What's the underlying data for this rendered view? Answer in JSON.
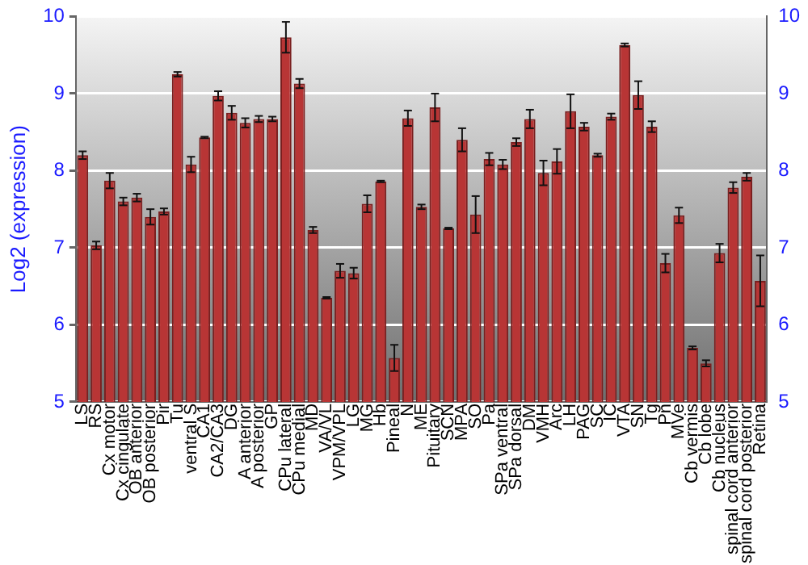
{
  "chart_data": {
    "type": "bar",
    "ylabel": "Log2 (expression)",
    "categories": [
      "LS",
      "RS",
      "Cx motor",
      "Cx cingulate",
      "OB anterior",
      "OB posterior",
      "Pir",
      "Tu",
      "ventral S",
      "CA1",
      "CA2/CA3",
      "DG",
      "A anterior",
      "A posterior",
      "GP",
      "CPu lateral",
      "CPu medial",
      "MD",
      "VA/VL",
      "VPM/VPL",
      "LG",
      "MG",
      "Hb",
      "Pineal",
      "N",
      "ME",
      "Pituitary",
      "SCN",
      "MPA",
      "SO",
      "Pa",
      "SPa ventral",
      "SPa dorsal",
      "DM",
      "VMH",
      "Arc",
      "LH",
      "PAG",
      "SC",
      "IC",
      "VTA",
      "SN",
      "Tg",
      "Pn",
      "MVe",
      "Cb vermis",
      "Cb lobe",
      "Cb nucleus",
      "spinal cord anterior",
      "spinal cord posterior",
      "Retina"
    ],
    "values": [
      8.2,
      7.03,
      7.87,
      7.6,
      7.65,
      7.4,
      7.47,
      9.25,
      8.08,
      8.43,
      8.97,
      8.75,
      8.62,
      8.67,
      8.67,
      9.73,
      9.13,
      7.23,
      6.35,
      6.7,
      6.67,
      7.57,
      7.86,
      5.57,
      8.68,
      7.53,
      8.82,
      7.25,
      8.4,
      7.43,
      8.15,
      8.08,
      8.37,
      8.67,
      7.97,
      8.12,
      8.77,
      8.57,
      8.2,
      8.7,
      9.63,
      8.98,
      8.57,
      6.8,
      7.42,
      5.7,
      5.5,
      6.93,
      7.78,
      7.92,
      6.57
    ],
    "errors": [
      0.05,
      0.05,
      0.1,
      0.05,
      0.05,
      0.1,
      0.04,
      0.03,
      0.1,
      0.01,
      0.06,
      0.09,
      0.06,
      0.04,
      0.03,
      0.2,
      0.06,
      0.04,
      0.01,
      0.09,
      0.07,
      0.11,
      0.01,
      0.17,
      0.1,
      0.03,
      0.18,
      0.01,
      0.15,
      0.24,
      0.08,
      0.06,
      0.05,
      0.12,
      0.16,
      0.16,
      0.22,
      0.05,
      0.02,
      0.04,
      0.02,
      0.18,
      0.07,
      0.12,
      0.1,
      0.02,
      0.04,
      0.12,
      0.07,
      0.05,
      0.33
    ],
    "color": "#b83535",
    "ylim": [
      5,
      10
    ],
    "yticks": [
      5,
      6,
      7,
      8,
      9,
      10
    ],
    "y2lim": [
      5,
      10
    ],
    "y2ticks": [
      5,
      6,
      7,
      8,
      9,
      10
    ],
    "grid": "y",
    "legend": false
  }
}
